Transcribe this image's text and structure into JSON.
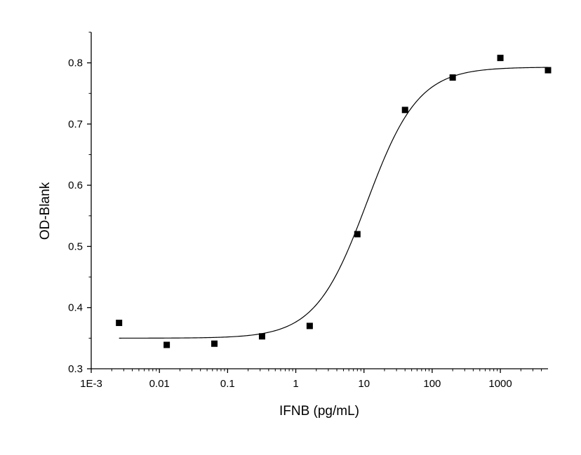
{
  "chart_data": {
    "type": "scatter",
    "title": "",
    "xlabel": "IFNB (pg/mL)",
    "ylabel": "OD-Blank",
    "xscale": "log",
    "xlim": [
      0.001,
      5000
    ],
    "ylim": [
      0.3,
      0.85
    ],
    "x_ticks": [
      {
        "value": 0.001,
        "label": "1E-3"
      },
      {
        "value": 0.01,
        "label": "0.01"
      },
      {
        "value": 0.1,
        "label": "0.1"
      },
      {
        "value": 1,
        "label": "1"
      },
      {
        "value": 10,
        "label": "10"
      },
      {
        "value": 100,
        "label": "100"
      },
      {
        "value": 1000,
        "label": "1000"
      }
    ],
    "y_ticks": [
      {
        "value": 0.3,
        "label": "0.3"
      },
      {
        "value": 0.4,
        "label": "0.4"
      },
      {
        "value": 0.5,
        "label": "0.5"
      },
      {
        "value": 0.6,
        "label": "0.6"
      },
      {
        "value": 0.7,
        "label": "0.7"
      },
      {
        "value": 0.8,
        "label": "0.8"
      }
    ],
    "y_minor_step": 0.05,
    "grid": false,
    "series": [
      {
        "marker": "square",
        "color": "#000000",
        "points": [
          {
            "x": 0.00256,
            "y": 0.375
          },
          {
            "x": 0.0128,
            "y": 0.339
          },
          {
            "x": 0.064,
            "y": 0.341
          },
          {
            "x": 0.32,
            "y": 0.353
          },
          {
            "x": 1.6,
            "y": 0.37
          },
          {
            "x": 8,
            "y": 0.52
          },
          {
            "x": 40,
            "y": 0.723
          },
          {
            "x": 200,
            "y": 0.776
          },
          {
            "x": 1000,
            "y": 0.808
          },
          {
            "x": 5000,
            "y": 0.788
          }
        ]
      }
    ],
    "fit": {
      "model": "4PL",
      "color": "#000000",
      "bottom": 0.35,
      "top": 0.793,
      "ec50": 11,
      "hill": 1.15,
      "x_range": [
        0.00256,
        5000
      ]
    }
  }
}
